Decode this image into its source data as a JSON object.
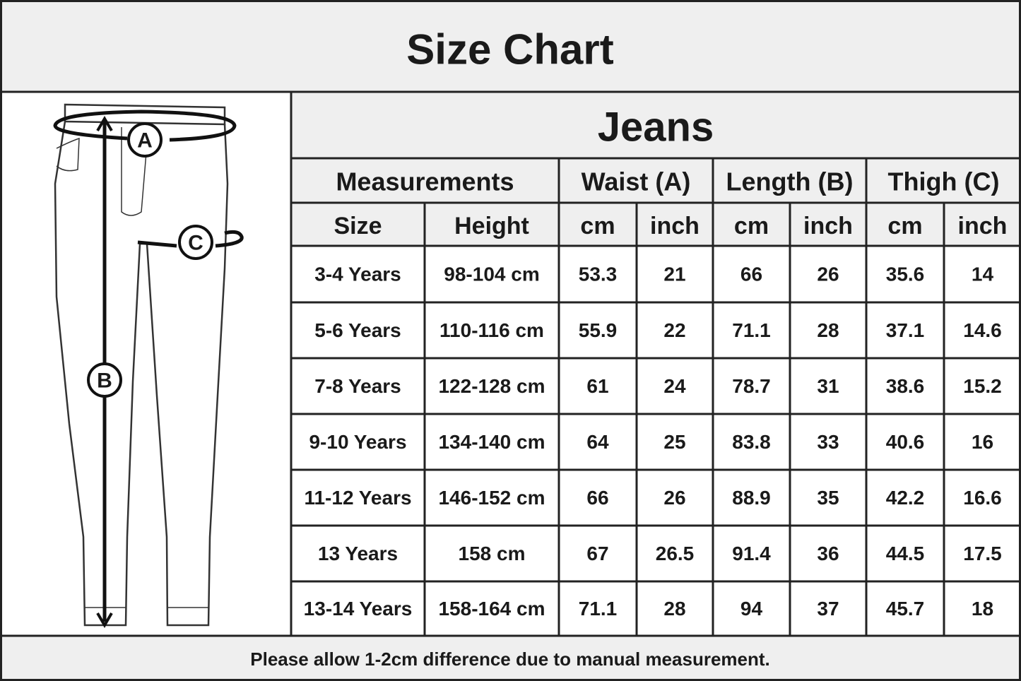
{
  "header": {
    "title": "Size Chart"
  },
  "diagram": {
    "labels": [
      "A",
      "B",
      "C"
    ]
  },
  "table": {
    "title": "Jeans",
    "groups": [
      "Measurements",
      "Waist (A)",
      "Length (B)",
      "Thigh (C)"
    ],
    "columns": [
      "Size",
      "Height",
      "cm",
      "inch",
      "cm",
      "inch",
      "cm",
      "inch"
    ],
    "rows": [
      [
        "3-4 Years",
        "98-104 cm",
        "53.3",
        "21",
        "66",
        "26",
        "35.6",
        "14"
      ],
      [
        "5-6 Years",
        "110-116 cm",
        "55.9",
        "22",
        "71.1",
        "28",
        "37.1",
        "14.6"
      ],
      [
        "7-8 Years",
        "122-128 cm",
        "61",
        "24",
        "78.7",
        "31",
        "38.6",
        "15.2"
      ],
      [
        "9-10 Years",
        "134-140 cm",
        "64",
        "25",
        "83.8",
        "33",
        "40.6",
        "16"
      ],
      [
        "11-12 Years",
        "146-152 cm",
        "66",
        "26",
        "88.9",
        "35",
        "42.2",
        "16.6"
      ],
      [
        "13 Years",
        "158 cm",
        "67",
        "26.5",
        "91.4",
        "36",
        "44.5",
        "17.5"
      ],
      [
        "13-14 Years",
        "158-164 cm",
        "71.1",
        "28",
        "94",
        "37",
        "45.7",
        "18"
      ]
    ]
  },
  "footer": {
    "note": "Please allow 1-2cm difference due to manual measurement."
  }
}
